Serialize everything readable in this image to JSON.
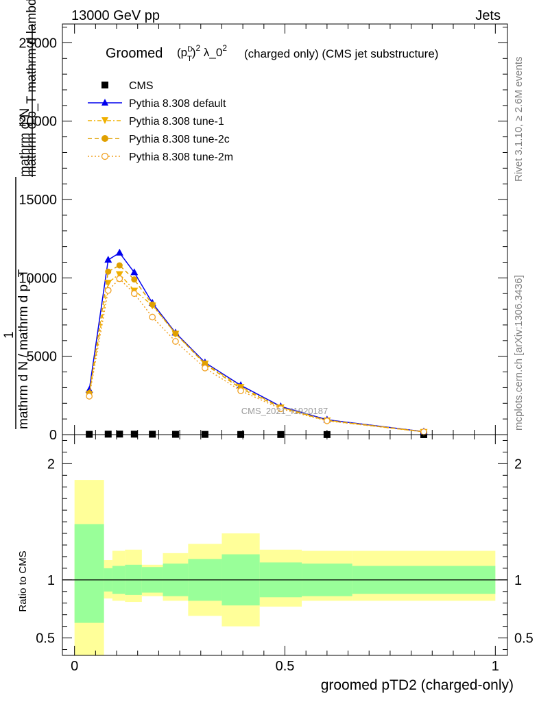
{
  "header": {
    "left": "13000 GeV pp",
    "right": "Jets"
  },
  "side_labels": {
    "rivet": "Rivet 3.1.10, ≥ 2.6M events",
    "mcplots": "mcplots.cern.ch [arXiv:1306.3436]"
  },
  "watermark": "CMS_2021_I1920187",
  "chart_data": [
    {
      "type": "line",
      "title_prefix": "Groomed",
      "title_suffix": "(charged only) (CMS jet substructure)",
      "ylabel_top": "mathrm d²N",
      "ylabel_mid": "mathrm d p_T mathrm d lambda",
      "ylabel_bottom": "mathrm d N / mathrm d p_T",
      "ylabel_one": "1",
      "xlim": [
        -0.0288,
        1.0288
      ],
      "ylim": [
        0,
        26200
      ],
      "yticks": [
        0,
        5000,
        10000,
        15000,
        20000,
        25000
      ],
      "yticklabels": [
        "0",
        "5000",
        "10000",
        "15000",
        "20000",
        "25000"
      ],
      "legend_position": "top-left",
      "x": [
        0.035,
        0.08,
        0.107,
        0.142,
        0.185,
        0.24,
        0.31,
        0.395,
        0.49,
        0.6,
        0.83
      ],
      "series": [
        {
          "name": "CMS",
          "color": "#000000",
          "marker": "square",
          "values": [
            20,
            30,
            35,
            30,
            25,
            20,
            15,
            10,
            8,
            5,
            2
          ]
        },
        {
          "name": "Pythia 8.308 default",
          "color": "#0000ee",
          "marker": "triangle-up",
          "dash": "",
          "values": [
            2850,
            11150,
            11600,
            10350,
            8400,
            6500,
            4600,
            3150,
            1800,
            950,
            190
          ]
        },
        {
          "name": "Pythia 8.308 tune-1",
          "color": "#f0b000",
          "marker": "triangle-down",
          "dash": "6,3,2,3",
          "values": [
            2600,
            9700,
            10250,
            9200,
            8250,
            6450,
            4550,
            3050,
            1750,
            920,
            185
          ]
        },
        {
          "name": "Pythia 8.308 tune-2c",
          "color": "#e0a000",
          "marker": "circle",
          "dash": "6,4",
          "values": [
            2650,
            10400,
            10800,
            9900,
            8300,
            6450,
            4500,
            2950,
            1730,
            900,
            180
          ]
        },
        {
          "name": "Pythia 8.308 tune-2m",
          "color": "#f0a020",
          "marker": "circle-open",
          "dash": "2,3",
          "values": [
            2450,
            9200,
            9950,
            9000,
            7500,
            5950,
            4250,
            2800,
            1650,
            880,
            178
          ]
        }
      ]
    },
    {
      "type": "area",
      "xlabel": "groomed pTD2 (charged-only)",
      "ylabel": "Ratio to CMS",
      "xlim": [
        -0.0288,
        1.0288
      ],
      "ylim": [
        0.35,
        2.25
      ],
      "xticks": [
        0,
        0.5,
        1
      ],
      "xticklabels": [
        "0",
        "0.5",
        "1"
      ],
      "yticks": [
        0.5,
        1,
        2
      ],
      "yticklabels": [
        "0.5",
        "1",
        "2"
      ],
      "bins": [
        0,
        0.07,
        0.09,
        0.12,
        0.16,
        0.21,
        0.27,
        0.35,
        0.44,
        0.54,
        0.66,
        1.0
      ],
      "band_inner": [
        [
          0.63,
          1.48
        ],
        [
          0.9,
          1.1
        ],
        [
          0.88,
          1.12
        ],
        [
          0.87,
          1.13
        ],
        [
          0.89,
          1.11
        ],
        [
          0.86,
          1.14
        ],
        [
          0.82,
          1.18
        ],
        [
          0.78,
          1.22
        ],
        [
          0.85,
          1.15
        ],
        [
          0.86,
          1.14
        ],
        [
          0.88,
          1.12
        ]
      ],
      "band_outer": [
        [
          0.35,
          1.86
        ],
        [
          0.84,
          1.17
        ],
        [
          0.82,
          1.25
        ],
        [
          0.81,
          1.26
        ],
        [
          0.86,
          1.13
        ],
        [
          0.82,
          1.23
        ],
        [
          0.69,
          1.31
        ],
        [
          0.6,
          1.4
        ],
        [
          0.77,
          1.26
        ],
        [
          0.82,
          1.25
        ],
        [
          0.82,
          1.25
        ]
      ],
      "inner_color": "#99ff99",
      "outer_color": "#ffff99"
    }
  ]
}
